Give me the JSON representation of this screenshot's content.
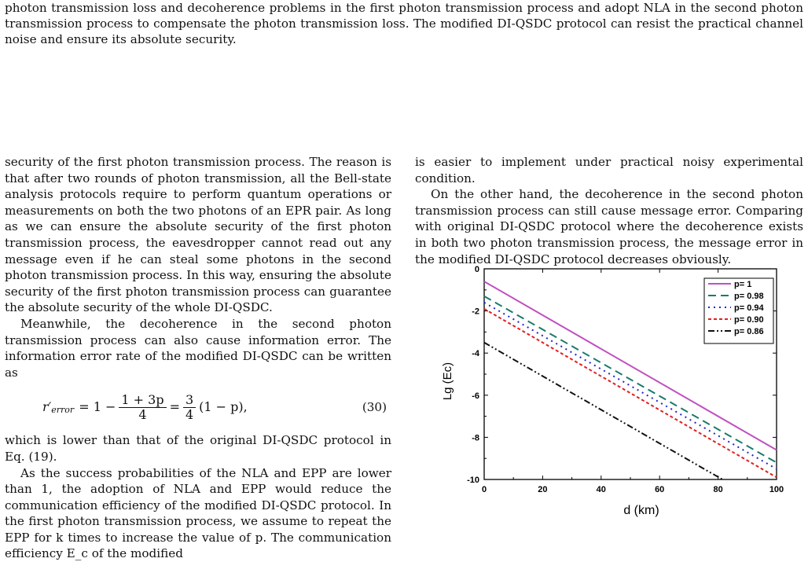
{
  "top_abstract": "photon transmission loss and decoherence problems in the first photon transmission process and adopt NLA in the second photon transmission process to compensate the photon transmission loss. The modified DI-QSDC protocol can resist the practical channel noise and ensure its absolute security.",
  "left_column": {
    "p1": "security of the first photon transmission process. The reason is that after two rounds of photon transmission, all the Bell-state analysis protocols require to perform quantum operations or measurements on both the two photons of an EPR pair. As long as we can ensure the absolute security of the first photon transmission process, the eavesdropper cannot read out any message even if he can steal some photons in the second photon transmission process. In this way, ensuring the absolute security of the first photon transmission process can guarantee the absolute security of the whole DI-QSDC.",
    "p2": "Meanwhile, the decoherence in the second photon transmission process can also cause information error. The information error rate of the modified DI-QSDC can be written as",
    "equation": {
      "lhs": "r′",
      "lhs_sub": "error",
      "part1": "= 1 −",
      "frac1_num": "1 + 3p",
      "frac1_den": "4",
      "part2": "=",
      "frac2_num": "3",
      "frac2_den": "4",
      "part3": "(1 − p),",
      "number": "(30)"
    },
    "p3": "which is lower than that of the original DI-QSDC protocol in Eq. (19).",
    "p4": "As the success probabilities of the NLA and EPP are lower than 1, the adoption of NLA and EPP would reduce the communication efficiency of the modified DI-QSDC protocol. In the first photon transmission process, we assume to repeat the EPP for k times to increase the value of p. The communication efficiency E_c of the modified"
  },
  "right_column": {
    "p1": "is easier to implement under practical noisy experimental condition.",
    "p2": "On the other hand, the decoherence in the second photon transmission process can still cause message error. Comparing with original DI-QSDC protocol where the decoherence exists in both two photon transmission process, the message error in the modified DI-QSDC protocol decreases obviously."
  },
  "chart_data": {
    "type": "line",
    "xlabel": "d (km)",
    "ylabel": "Lg (Ec)",
    "xlim": [
      0,
      100
    ],
    "ylim": [
      -10,
      0
    ],
    "xticks": [
      "0",
      "20",
      "40",
      "60",
      "80",
      "100"
    ],
    "yticks": [
      "0",
      "-2",
      "-4",
      "-6",
      "-8",
      "-10"
    ],
    "legend_position": "top-right",
    "series": [
      {
        "name": "p= 1",
        "color": "#c050c0",
        "dash": "",
        "x": [
          0,
          100
        ],
        "y": [
          -0.6,
          -8.6
        ]
      },
      {
        "name": "p= 0.98",
        "color": "#1a7a6a",
        "dash": "10,6",
        "x": [
          0,
          100
        ],
        "y": [
          -1.3,
          -9.2
        ]
      },
      {
        "name": "p= 0.94",
        "color": "#2424c8",
        "dash": "2,5",
        "x": [
          0,
          100
        ],
        "y": [
          -1.6,
          -9.5
        ]
      },
      {
        "name": "p= 0.90",
        "color": "#e02020",
        "dash": "4,3",
        "x": [
          0,
          100
        ],
        "y": [
          -1.9,
          -9.9
        ]
      },
      {
        "name": "p= 0.86",
        "color": "#111111",
        "dash": "8,3,2,3,2,3",
        "x": [
          0,
          81.5
        ],
        "y": [
          -3.5,
          -10
        ]
      }
    ]
  }
}
